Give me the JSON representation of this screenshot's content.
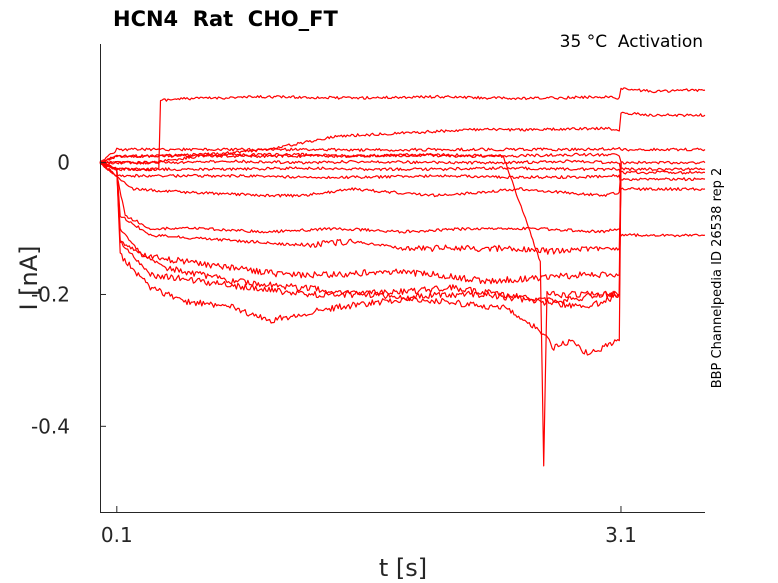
{
  "chart_data": {
    "type": "line",
    "title": "HCN4  Rat  CHO_FT",
    "annotation": "35 °C  Activation",
    "side_label": "BBP Channelpedia ID 26538 rep 2",
    "xlabel": "t [s]",
    "ylabel": "I [nA]",
    "x_ticks": [
      0.1,
      3.1
    ],
    "y_ticks": [
      0,
      -0.2,
      -0.4
    ],
    "y_tick_labels": [
      "0",
      "-0.2",
      "-0.4"
    ],
    "x_tick_labels": [
      "0.1",
      "3.1"
    ],
    "xlim": [
      0,
      3.6
    ],
    "ylim": [
      -0.53,
      0.18
    ],
    "grid": false,
    "trace_color": "#ff0000",
    "series": [
      {
        "x": [
          0,
          0.1,
          0.35,
          0.36,
          0.5,
          1.0,
          1.5,
          2.0,
          2.5,
          3.0,
          3.09,
          3.1,
          3.3,
          3.5,
          3.6
        ],
        "y": [
          0.0,
          -0.01,
          -0.01,
          0.095,
          0.097,
          0.1,
          0.098,
          0.1,
          0.097,
          0.1,
          0.098,
          0.112,
          0.108,
          0.11,
          0.11
        ]
      },
      {
        "x": [
          0,
          0.1,
          0.3,
          0.6,
          1.0,
          1.4,
          1.8,
          2.2,
          2.6,
          3.0,
          3.09,
          3.1,
          3.3,
          3.6
        ],
        "y": [
          0.0,
          0.01,
          0.01,
          0.012,
          0.02,
          0.04,
          0.045,
          0.05,
          0.05,
          0.052,
          0.05,
          0.075,
          0.072,
          0.072
        ]
      },
      {
        "x": [
          0,
          0.1,
          0.4,
          0.8,
          1.2,
          1.6,
          2.0,
          2.4,
          2.8,
          3.09,
          3.1,
          3.6
        ],
        "y": [
          0.0,
          0.02,
          0.02,
          0.02,
          0.02,
          0.019,
          0.02,
          0.02,
          0.02,
          0.021,
          0.02,
          0.02
        ]
      },
      {
        "x": [
          0,
          0.1,
          0.4,
          0.8,
          1.2,
          1.6,
          2.0,
          2.4,
          2.8,
          3.09,
          3.1,
          3.6
        ],
        "y": [
          0.0,
          0.01,
          0.01,
          0.012,
          0.012,
          0.01,
          0.012,
          0.01,
          0.012,
          0.012,
          0.0,
          0.0
        ]
      },
      {
        "x": [
          0,
          0.1,
          0.4,
          0.8,
          1.2,
          1.6,
          2.0,
          2.4,
          2.8,
          3.09,
          3.1,
          3.6
        ],
        "y": [
          0.0,
          0.0,
          0.0,
          0.002,
          0.0,
          0.002,
          0.0,
          0.0,
          0.002,
          0.0,
          -0.015,
          -0.015
        ]
      },
      {
        "x": [
          0,
          0.1,
          0.4,
          0.8,
          1.2,
          1.6,
          2.0,
          2.4,
          2.8,
          3.09,
          3.1,
          3.6
        ],
        "y": [
          0.0,
          -0.01,
          -0.01,
          -0.01,
          -0.008,
          -0.01,
          -0.01,
          -0.008,
          -0.01,
          -0.01,
          -0.025,
          -0.025
        ]
      },
      {
        "x": [
          0,
          0.1,
          0.4,
          0.8,
          1.2,
          1.6,
          2.0,
          2.4,
          2.8,
          3.09,
          3.1,
          3.6
        ],
        "y": [
          0.0,
          -0.02,
          -0.02,
          -0.02,
          -0.022,
          -0.022,
          -0.02,
          -0.022,
          -0.022,
          -0.02,
          -0.04,
          -0.04
        ]
      },
      {
        "x": [
          0,
          0.1,
          0.2,
          0.5,
          1.0,
          1.2,
          1.5,
          2.0,
          2.5,
          3.0,
          3.09,
          3.1,
          3.6
        ],
        "y": [
          0.0,
          -0.02,
          -0.04,
          -0.045,
          -0.05,
          -0.05,
          -0.04,
          -0.05,
          -0.04,
          -0.05,
          -0.045,
          -0.01,
          -0.01
        ]
      },
      {
        "x": [
          0,
          0.1,
          0.15,
          0.3,
          0.6,
          1.0,
          1.4,
          1.8,
          2.2,
          2.6,
          3.0,
          3.09,
          3.1,
          3.6
        ],
        "y": [
          0.0,
          -0.02,
          -0.08,
          -0.1,
          -0.1,
          -0.105,
          -0.1,
          -0.105,
          -0.1,
          -0.1,
          -0.105,
          -0.1,
          -0.11,
          -0.11
        ]
      },
      {
        "x": [
          0,
          0.1,
          0.12,
          0.3,
          0.6,
          0.9,
          1.2,
          1.5,
          1.8,
          2.1,
          2.4,
          2.7,
          3.0,
          3.09,
          3.1
        ],
        "y": [
          0.0,
          -0.01,
          -0.08,
          -0.11,
          -0.115,
          -0.12,
          -0.125,
          -0.12,
          -0.13,
          -0.13,
          -0.13,
          -0.135,
          -0.13,
          -0.13,
          -0.005
        ]
      },
      {
        "x": [
          0,
          0.1,
          0.12,
          0.25,
          0.5,
          0.8,
          1.1,
          1.4,
          1.7,
          2.0,
          2.3,
          2.6,
          2.9,
          3.09,
          3.1
        ],
        "y": [
          0.0,
          -0.01,
          -0.1,
          -0.14,
          -0.15,
          -0.16,
          -0.17,
          -0.17,
          -0.165,
          -0.17,
          -0.18,
          -0.175,
          -0.17,
          -0.17,
          0.0
        ]
      },
      {
        "x": [
          0,
          0.1,
          0.12,
          0.3,
          0.6,
          0.9,
          1.2,
          1.5,
          1.8,
          2.1,
          2.4,
          2.7,
          3.0,
          3.09,
          3.1
        ],
        "y": [
          0.0,
          -0.01,
          -0.12,
          -0.17,
          -0.18,
          -0.19,
          -0.2,
          -0.2,
          -0.195,
          -0.19,
          -0.2,
          -0.21,
          -0.2,
          -0.2,
          0.0
        ]
      },
      {
        "x": [
          0,
          0.1,
          0.12,
          0.3,
          0.5,
          0.8,
          1.0,
          1.2,
          1.4,
          1.7,
          2.0,
          2.3,
          2.6,
          2.9,
          3.09,
          3.1
        ],
        "y": [
          0.0,
          -0.01,
          -0.14,
          -0.19,
          -0.21,
          -0.22,
          -0.24,
          -0.23,
          -0.22,
          -0.21,
          -0.2,
          -0.2,
          -0.21,
          -0.22,
          -0.2,
          0.0
        ]
      },
      {
        "x": [
          0,
          0.1,
          0.12,
          0.4,
          0.8,
          1.2,
          1.6,
          2.0,
          2.4,
          2.6,
          2.7,
          2.8,
          2.9,
          3.0,
          3.09,
          3.1
        ],
        "y": [
          0.0,
          -0.01,
          -0.12,
          -0.16,
          -0.18,
          -0.19,
          -0.2,
          -0.21,
          -0.22,
          -0.25,
          -0.28,
          -0.27,
          -0.29,
          -0.28,
          -0.27,
          0.0
        ]
      },
      {
        "x": [
          0,
          0.1,
          0.3,
          0.6,
          0.9,
          1.2,
          1.5,
          1.8,
          2.1,
          2.4,
          2.62,
          2.64,
          2.66,
          2.7,
          2.9,
          3.09,
          3.1
        ],
        "y": [
          0.0,
          0.0,
          0.0,
          0.01,
          0.01,
          0.01,
          0.01,
          0.012,
          0.01,
          0.01,
          -0.15,
          -0.46,
          -0.2,
          -0.2,
          -0.2,
          -0.2,
          0.0
        ]
      }
    ]
  }
}
